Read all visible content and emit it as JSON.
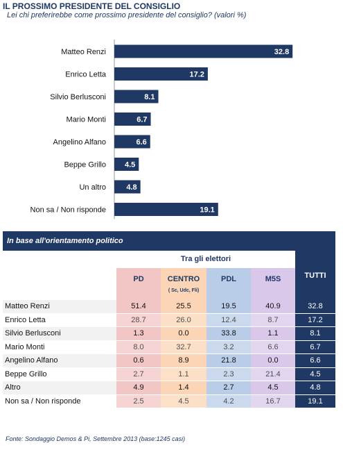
{
  "title": "IL PROSSIMO PRESIDENTE DEL CONSIGLIO",
  "subtitle": "Lei chi preferirebbe come prossimo presidente del consiglio? (valori %)",
  "colors": {
    "navy": "#1f3864",
    "pd": "#f3c6c6",
    "centro": "#fbd5b5",
    "pdl": "#b9cde8",
    "m5s": "#d9c8ea",
    "row_alt": "#f2f2f2"
  },
  "chart_data": {
    "type": "bar",
    "orientation": "horizontal",
    "categories": [
      "Matteo Renzi",
      "Enrico Letta",
      "Silvio Berlusconi",
      "Mario Monti",
      "Angelino Alfano",
      "Beppe Grillo",
      "Un altro",
      "Non sa / Non risponde"
    ],
    "values": [
      32.8,
      17.2,
      8.1,
      6.7,
      6.6,
      4.5,
      4.8,
      19.1
    ],
    "xlim": [
      0,
      38
    ],
    "grid": false,
    "legend": "none"
  },
  "table": {
    "panel_title": "In base all'orientamento politico",
    "group_header": "Tra gli elettori",
    "columns": [
      {
        "key": "pd",
        "label": "PD",
        "sub": ""
      },
      {
        "key": "centro",
        "label": "CENTRO",
        "sub": "( Sc, Udc, Fli)"
      },
      {
        "key": "pdl",
        "label": "PDL",
        "sub": ""
      },
      {
        "key": "m5s",
        "label": "M5S",
        "sub": ""
      }
    ],
    "total_label": "TUTTI",
    "rows": [
      {
        "label": "Matteo Renzi",
        "values": [
          "51.4",
          "25.5",
          "19.5",
          "40.9"
        ],
        "tutti": "32.8"
      },
      {
        "label": "Enrico Letta",
        "values": [
          "28.7",
          "26.0",
          "12.4",
          "8.7"
        ],
        "tutti": "17.2"
      },
      {
        "label": "Silvio Berlusconi",
        "values": [
          "1.3",
          "0.0",
          "33.8",
          "1.1"
        ],
        "tutti": "8.1"
      },
      {
        "label": "Mario Monti",
        "values": [
          "8.0",
          "32.7",
          "3.2",
          "6.6"
        ],
        "tutti": "6.7"
      },
      {
        "label": "Angelino Alfano",
        "values": [
          "0.6",
          "8.9",
          "21.8",
          "0.0"
        ],
        "tutti": "6.6"
      },
      {
        "label": "Beppe Grillo",
        "values": [
          "2.7",
          "1.1",
          "2.3",
          "21.4"
        ],
        "tutti": "4.5"
      },
      {
        "label": "Altro",
        "values": [
          "4.9",
          "1.4",
          "2.7",
          "4.5"
        ],
        "tutti": "4.8"
      },
      {
        "label": "Non sa / Non risponde",
        "values": [
          "2.5",
          "4.5",
          "4.2",
          "16.7"
        ],
        "tutti": "19.1"
      }
    ]
  },
  "footer": "Fonte: Sondaggio Demos & Pi, Settembre 2013 (base:1245 casi)"
}
